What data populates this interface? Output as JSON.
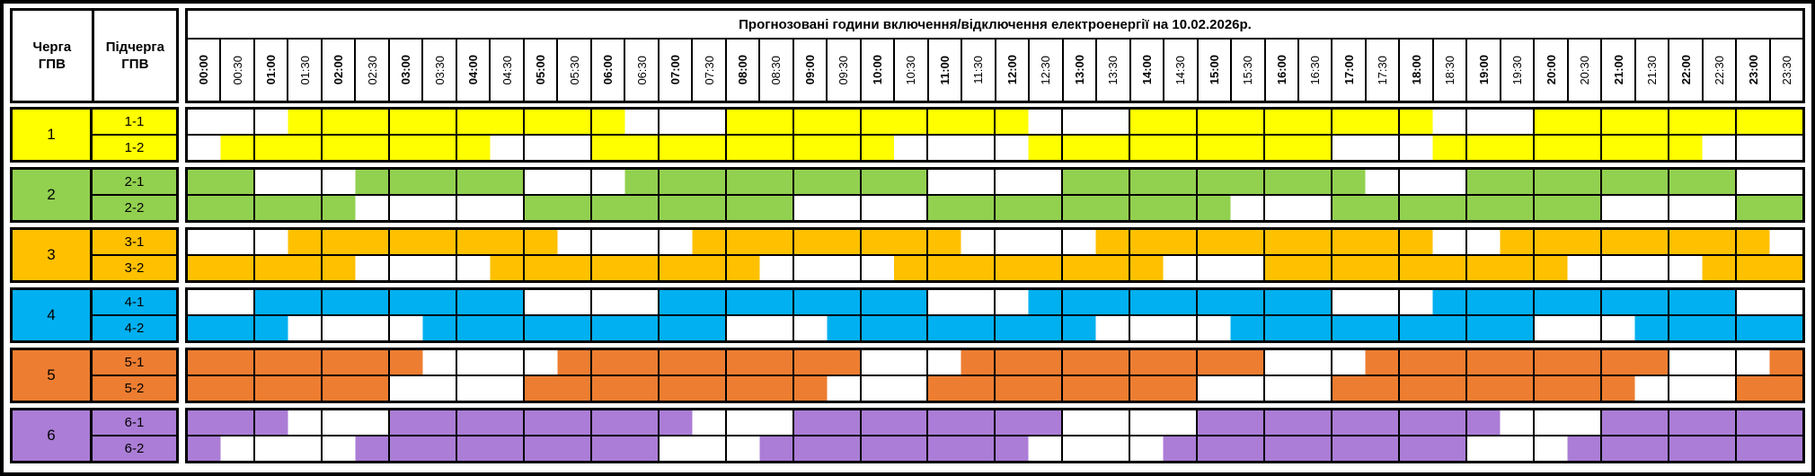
{
  "title": "Прогнозовані години включення/відключення електроенергії на 10.02.2026р.",
  "headers": {
    "queue": "Черга ГПВ",
    "subqueue": "Підчерга ГПВ"
  },
  "time_slots": [
    "00:00",
    "00:30",
    "01:00",
    "01:30",
    "02:00",
    "02:30",
    "03:00",
    "03:30",
    "04:00",
    "04:30",
    "05:00",
    "05:30",
    "06:00",
    "06:30",
    "07:00",
    "07:30",
    "08:00",
    "08:30",
    "09:00",
    "09:30",
    "10:00",
    "10:30",
    "11:00",
    "11:30",
    "12:00",
    "12:30",
    "13:00",
    "13:30",
    "14:00",
    "14:30",
    "15:00",
    "15:30",
    "16:00",
    "16:30",
    "17:00",
    "17:30",
    "18:00",
    "18:30",
    "19:00",
    "19:30",
    "20:00",
    "20:30",
    "21:00",
    "21:30",
    "22:00",
    "22:30",
    "23:00",
    "23:30"
  ],
  "chart_data": {
    "type": "heatmap",
    "title": "Прогнозовані години включення/відключення електроенергії на 10.02.2026р.",
    "date": "10.02.2026",
    "x_labels": [
      "00:00",
      "00:30",
      "01:00",
      "01:30",
      "02:00",
      "02:30",
      "03:00",
      "03:30",
      "04:00",
      "04:30",
      "05:00",
      "05:30",
      "06:00",
      "06:30",
      "07:00",
      "07:30",
      "08:00",
      "08:30",
      "09:00",
      "09:30",
      "10:00",
      "10:30",
      "11:00",
      "11:30",
      "12:00",
      "12:30",
      "13:00",
      "13:30",
      "14:00",
      "14:30",
      "15:00",
      "15:30",
      "16:00",
      "16:30",
      "17:00",
      "17:30",
      "18:00",
      "18:30",
      "19:00",
      "19:30",
      "20:00",
      "20:30",
      "21:00",
      "21:30",
      "22:00",
      "22:30",
      "23:00",
      "23:30"
    ],
    "slot_minutes": 30,
    "pattern_encoding": "48 chars per row, one per 30-min slot: 1 = cell filled with queue colour, 0 = white",
    "queues": [
      {
        "queue": "1",
        "color": "#FFFF00",
        "subqueues": [
          {
            "label": "1-1",
            "pattern": "000111111111100011111111100011111111100011111111"
          },
          {
            "label": "1-2",
            "pattern": "011111111000111111111000011111111100011111111000"
          }
        ]
      },
      {
        "queue": "2",
        "color": "#92D050",
        "subqueues": [
          {
            "label": "2-1",
            "pattern": "110001111100011111111100001111111110001111111100"
          },
          {
            "label": "2-2",
            "pattern": "111110000011111111000011111111100011111111000011"
          }
        ]
      },
      {
        "queue": "3",
        "color": "#FFC000",
        "subqueues": [
          {
            "label": "3-1",
            "pattern": "000111111110000111111110000111111111100111111110"
          },
          {
            "label": "3-2",
            "pattern": "111110000111111110000111111110001111111110000111"
          }
        ]
      },
      {
        "queue": "4",
        "color": "#00B0F0",
        "subqueues": [
          {
            "label": "4-1",
            "pattern": "001111111100001111111100011111111100011111111100"
          },
          {
            "label": "4-2",
            "pattern": "111000011111111100011111111000011111111100011111"
          }
        ]
      },
      {
        "queue": "5",
        "color": "#ED7D31",
        "subqueues": [
          {
            "label": "5-1",
            "pattern": "111111100001111111110001111111110001111111110001"
          },
          {
            "label": "5-2",
            "pattern": "111111000011111111100011111111000011111111100011"
          }
        ]
      },
      {
        "queue": "6",
        "color": "#AB7DD6",
        "subqueues": [
          {
            "label": "6-1",
            "pattern": "111000111111111000111111110000111111111000111111"
          },
          {
            "label": "6-2",
            "pattern": "100001111111110001111111100001111111110001111111"
          }
        ]
      }
    ]
  }
}
